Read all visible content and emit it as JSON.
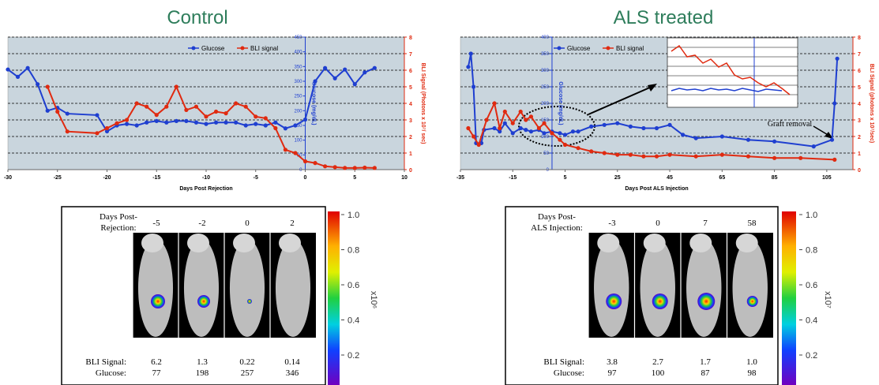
{
  "chart_data": [
    {
      "type": "line",
      "title": "Control",
      "x_label": "Days Post Rejection",
      "y_label": "Glucose (mg/dL)",
      "y2_label": "BLI Signal (Photons x 10⁷/ sec)",
      "xlim": [
        -30,
        10
      ],
      "xticks": [
        -30,
        -25,
        -20,
        -15,
        -10,
        -5,
        0,
        5,
        10
      ],
      "ylim": [
        0,
        450
      ],
      "yticks": [
        0,
        50,
        100,
        150,
        200,
        250,
        300,
        350,
        400,
        450
      ],
      "y2lim": [
        0,
        8
      ],
      "y2ticks": [
        0,
        1,
        2,
        3,
        4,
        5,
        6,
        7,
        8
      ],
      "grid": true,
      "series": [
        {
          "name": "Glucose",
          "color": "#1f3fd0",
          "x": [
            -30,
            -29,
            -28,
            -27,
            -26,
            -25,
            -24,
            -21,
            -20,
            -19,
            -18,
            -17,
            -16,
            -15,
            -14,
            -13,
            -12,
            -11,
            -10,
            -9,
            -8,
            -7,
            -6,
            -5,
            -4,
            -3,
            -2,
            -1,
            0,
            1,
            2,
            3,
            4,
            5,
            6,
            7
          ],
          "values": [
            340,
            315,
            345,
            290,
            200,
            210,
            190,
            185,
            130,
            150,
            155,
            150,
            160,
            165,
            160,
            165,
            165,
            160,
            155,
            160,
            160,
            160,
            150,
            155,
            150,
            160,
            140,
            150,
            170,
            300,
            345,
            310,
            340,
            290,
            330,
            345
          ]
        },
        {
          "name": "BLI signal",
          "color": "#e02a10",
          "axis": "y2",
          "x": [
            -26,
            -25,
            -24,
            -21,
            -20,
            -19,
            -18,
            -17,
            -16,
            -15,
            -14,
            -13,
            -12,
            -11,
            -10,
            -9,
            -8,
            -7,
            -6,
            -5,
            -4,
            -3,
            -2,
            -1,
            0,
            1,
            2,
            3,
            4,
            5,
            6,
            7
          ],
          "values": [
            5,
            3.5,
            2.3,
            2.2,
            2.5,
            2.8,
            3,
            4,
            3.8,
            3.3,
            3.8,
            5,
            3.6,
            3.8,
            3.2,
            3.5,
            3.4,
            4,
            3.8,
            3.2,
            3.1,
            2.5,
            1.2,
            1,
            0.5,
            0.4,
            0.2,
            0.15,
            0.1,
            0.1,
            0.12,
            0.1
          ]
        }
      ]
    },
    {
      "type": "line",
      "title": "ALS treated",
      "x_label": "Days Post ALS Injection",
      "y_label": "Glucose (mg/dL)",
      "y2_label": "BLI Signal (photons x 10⁷/sec)",
      "xlim": [
        -35,
        115
      ],
      "xticks": [
        -35,
        -15,
        5,
        25,
        45,
        65,
        85,
        105
      ],
      "ylim": [
        0,
        400
      ],
      "yticks": [
        0,
        50,
        100,
        150,
        200,
        250,
        300,
        350,
        400
      ],
      "y2lim": [
        0,
        8
      ],
      "y2ticks": [
        0,
        1,
        2,
        3,
        4,
        5,
        6,
        7,
        8
      ],
      "grid": true,
      "annotations": [
        "Graft removal"
      ],
      "series": [
        {
          "name": "Glucose",
          "color": "#1f3fd0",
          "x": [
            -32,
            -31,
            -30,
            -29,
            -27,
            -26,
            -22,
            -20,
            -18,
            -15,
            -12,
            -10,
            -8,
            -5,
            -3,
            0,
            3,
            5,
            8,
            10,
            15,
            20,
            25,
            30,
            35,
            40,
            45,
            50,
            55,
            65,
            75,
            85,
            100,
            107,
            108,
            109
          ],
          "values": [
            310,
            350,
            250,
            80,
            80,
            120,
            125,
            115,
            140,
            110,
            125,
            120,
            115,
            120,
            110,
            115,
            110,
            105,
            115,
            115,
            130,
            135,
            140,
            130,
            125,
            125,
            135,
            105,
            95,
            100,
            90,
            85,
            70,
            90,
            200,
            335
          ]
        },
        {
          "name": "BLI signal",
          "color": "#e02a10",
          "axis": "y2",
          "x": [
            -32,
            -30,
            -28,
            -25,
            -22,
            -20,
            -18,
            -15,
            -12,
            -10,
            -8,
            -5,
            -3,
            0,
            3,
            5,
            10,
            15,
            20,
            25,
            30,
            35,
            40,
            45,
            55,
            65,
            75,
            85,
            95,
            108
          ],
          "values": [
            2.5,
            2,
            1.5,
            3,
            4,
            2.5,
            3.5,
            2.8,
            3.5,
            3,
            3.2,
            2.5,
            2.8,
            2.2,
            1.8,
            1.5,
            1.3,
            1.1,
            1,
            0.9,
            0.9,
            0.8,
            0.8,
            0.9,
            0.8,
            0.9,
            0.8,
            0.7,
            0.7,
            0.6
          ]
        }
      ]
    }
  ],
  "image_panels": [
    {
      "days_label": [
        "Days Post-",
        "Rejection:"
      ],
      "days": [
        "-5",
        "-2",
        "0",
        "2"
      ],
      "bli_label": "BLI Signal:",
      "bli": [
        "6.2",
        "1.3",
        "0.22",
        "0.14"
      ],
      "glucose_label": "Glucose:",
      "glucose": [
        "77",
        "198",
        "257",
        "346"
      ],
      "colorbar_ticks": [
        "1.0",
        "0.8",
        "0.6",
        "0.4",
        "0.2"
      ],
      "colorbar_unit": "x10⁶"
    },
    {
      "days_label": [
        "Days Post-",
        "ALS Injection:"
      ],
      "days": [
        "-3",
        "0",
        "7",
        "58"
      ],
      "bli_label": "BLI Signal:",
      "bli": [
        "3.8",
        "2.7",
        "1.7",
        "1.0"
      ],
      "glucose_label": "Glucose:",
      "glucose": [
        "97",
        "100",
        "87",
        "98"
      ],
      "colorbar_ticks": [
        "1.0",
        "0.8",
        "0.6",
        "0.4",
        "0.2"
      ],
      "colorbar_unit": "x10⁷"
    }
  ]
}
